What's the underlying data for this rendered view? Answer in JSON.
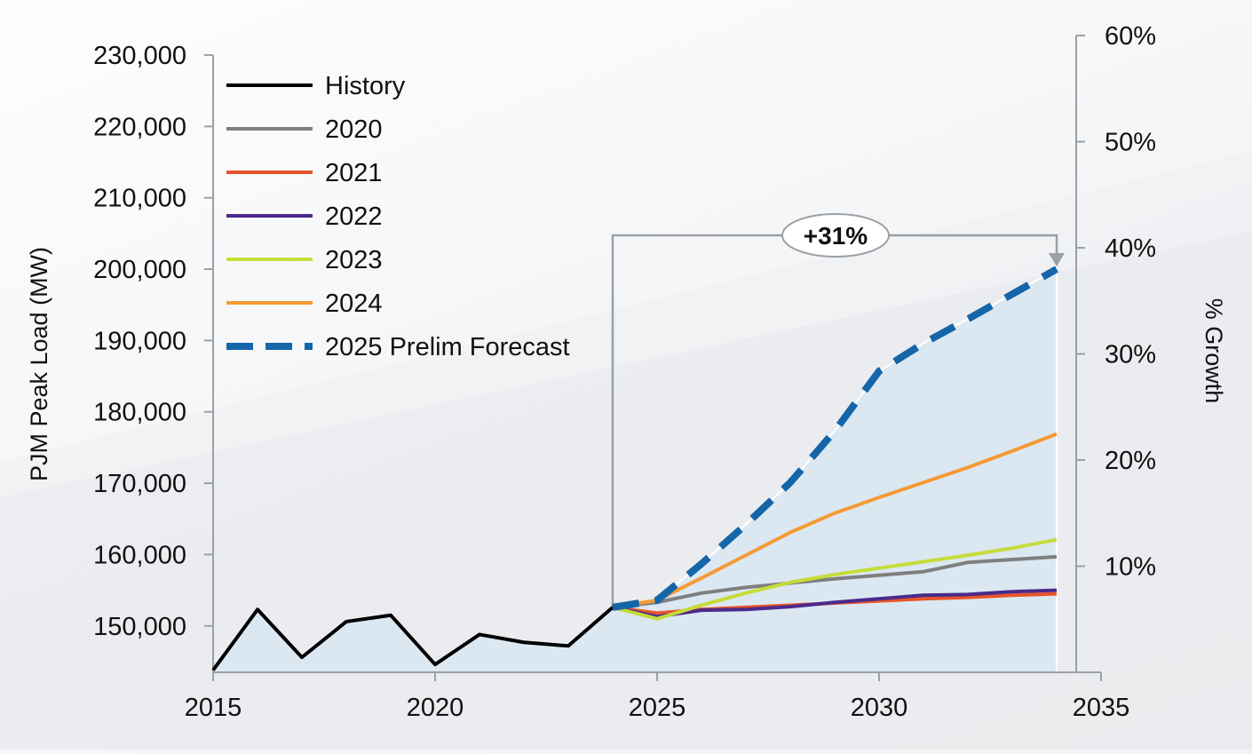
{
  "chart_data": {
    "type": "line",
    "xlabel": "",
    "ylabel": "PJM Peak Load (MW)",
    "ylabel_right": "% Growth",
    "xlim": [
      2015,
      2035
    ],
    "ylim": [
      143500,
      230000
    ],
    "ylim_right": [
      0,
      60
    ],
    "x_ticks": [
      "2015",
      "2020",
      "2025",
      "2030",
      "2035"
    ],
    "y_ticks": [
      "150,000",
      "160,000",
      "170,000",
      "180,000",
      "190,000",
      "200,000",
      "210,000",
      "220,000",
      "230,000"
    ],
    "y_ticks_right": [
      "10%",
      "20%",
      "30%",
      "40%",
      "50%",
      "60%"
    ],
    "legend_position": "top-left",
    "annotation": {
      "label": "+31%",
      "from_year": 2024,
      "to_year": 2034
    },
    "series": [
      {
        "name": "History",
        "color": "#000000",
        "style": "solid",
        "points": [
          [
            2015,
            143800
          ],
          [
            2016,
            152300
          ],
          [
            2017,
            145600
          ],
          [
            2018,
            150600
          ],
          [
            2019,
            151500
          ],
          [
            2020,
            144600
          ],
          [
            2021,
            148800
          ],
          [
            2022,
            147700
          ],
          [
            2023,
            147200
          ],
          [
            2024,
            152600
          ]
        ]
      },
      {
        "name": "2020",
        "color": "#7f7f7f",
        "style": "solid",
        "points": [
          [
            2024,
            152600
          ],
          [
            2025,
            153300
          ],
          [
            2026,
            154600
          ],
          [
            2027,
            155400
          ],
          [
            2028,
            156000
          ],
          [
            2029,
            156600
          ],
          [
            2030,
            157100
          ],
          [
            2031,
            157600
          ],
          [
            2032,
            158900
          ],
          [
            2033,
            159300
          ],
          [
            2034,
            159700
          ]
        ]
      },
      {
        "name": "2021",
        "color": "#e8542a",
        "style": "solid",
        "points": [
          [
            2024,
            152600
          ],
          [
            2025,
            151800
          ],
          [
            2026,
            152300
          ],
          [
            2027,
            152600
          ],
          [
            2028,
            152900
          ],
          [
            2029,
            153200
          ],
          [
            2030,
            153500
          ],
          [
            2031,
            153800
          ],
          [
            2032,
            154000
          ],
          [
            2033,
            154300
          ],
          [
            2034,
            154500
          ]
        ]
      },
      {
        "name": "2022",
        "color": "#4b2a8c",
        "style": "solid",
        "points": [
          [
            2024,
            152600
          ],
          [
            2025,
            151300
          ],
          [
            2026,
            152200
          ],
          [
            2027,
            152300
          ],
          [
            2028,
            152700
          ],
          [
            2029,
            153300
          ],
          [
            2030,
            153800
          ],
          [
            2031,
            154300
          ],
          [
            2032,
            154400
          ],
          [
            2033,
            154800
          ],
          [
            2034,
            155000
          ]
        ]
      },
      {
        "name": "2023",
        "color": "#c6dc3a",
        "style": "solid",
        "points": [
          [
            2024,
            152600
          ],
          [
            2025,
            151000
          ],
          [
            2026,
            152900
          ],
          [
            2027,
            154600
          ],
          [
            2028,
            156100
          ],
          [
            2029,
            157200
          ],
          [
            2030,
            158100
          ],
          [
            2031,
            159000
          ],
          [
            2032,
            159900
          ],
          [
            2033,
            160900
          ],
          [
            2034,
            162100
          ]
        ]
      },
      {
        "name": "2024",
        "color": "#f59a34",
        "style": "solid",
        "points": [
          [
            2024,
            152600
          ],
          [
            2025,
            153600
          ],
          [
            2026,
            156700
          ],
          [
            2027,
            159900
          ],
          [
            2028,
            163100
          ],
          [
            2029,
            165800
          ],
          [
            2030,
            168000
          ],
          [
            2031,
            170100
          ],
          [
            2032,
            172200
          ],
          [
            2033,
            174500
          ],
          [
            2034,
            176900
          ]
        ]
      },
      {
        "name": "2025 Prelim Forecast",
        "color": "#1565a9",
        "style": "dashed",
        "points": [
          [
            2024,
            152600
          ],
          [
            2025,
            153600
          ],
          [
            2026,
            158700
          ],
          [
            2027,
            164200
          ],
          [
            2028,
            170100
          ],
          [
            2029,
            177300
          ],
          [
            2030,
            185700
          ],
          [
            2031,
            189600
          ],
          [
            2032,
            193000
          ],
          [
            2033,
            196500
          ],
          [
            2034,
            200000
          ]
        ]
      }
    ]
  }
}
